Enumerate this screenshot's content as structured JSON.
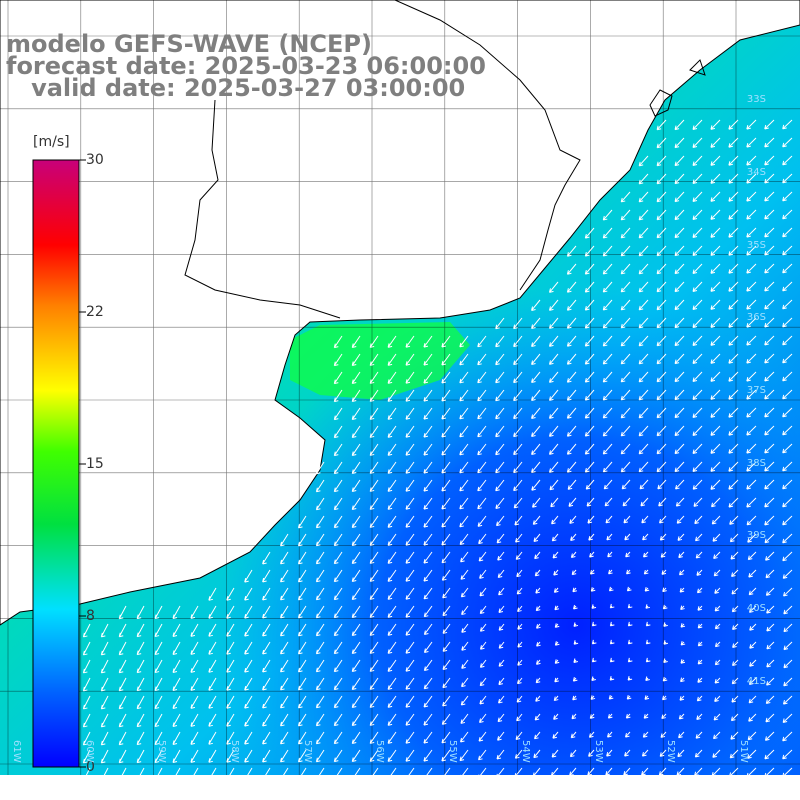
{
  "title": {
    "line1": "modelo GEFS-WAVE (NCEP)",
    "line2": "forecast date: 2025-03-23 06:00:00",
    "line3": "   valid date: 2025-03-27 03:00:00"
  },
  "colorbar": {
    "unit": "[m/s]",
    "ticks": [
      "30",
      "22",
      "15",
      "8",
      "0"
    ]
  },
  "axes": {
    "lat_labels": [
      "33S",
      "34S",
      "35S",
      "36S",
      "37S",
      "38S",
      "39S",
      "40S",
      "41S"
    ],
    "lon_labels": [
      "61W",
      "60W",
      "59W",
      "58W",
      "57W",
      "56W",
      "55W",
      "54W",
      "53W",
      "52W",
      "51W"
    ]
  },
  "colors": {
    "land": "#ffffff",
    "coast": "#000000",
    "grid": "#000000",
    "arrow": "#ffffff"
  },
  "legend_glyph": "wind-arrow-icon"
}
